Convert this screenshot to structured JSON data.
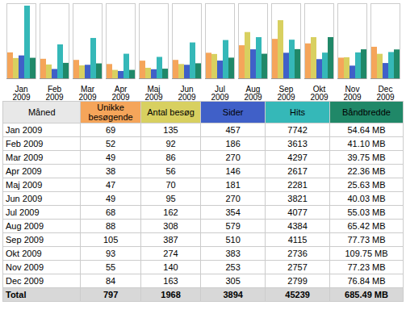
{
  "chart_data": [
    {
      "type": "bar",
      "categories": [
        "Jan\n2009",
        "Feb\n2009",
        "Mar\n2009",
        "Apr\n2009",
        "Maj\n2009",
        "Jun\n2009",
        "Jul\n2009",
        "Aug\n2009",
        "Sep\n2009",
        "Okt\n2009",
        "Nov\n2009",
        "Dec\n2009"
      ],
      "series": [
        {
          "color": "#F5A55A",
          "values": [
            34.5,
            26,
            24.5,
            19,
            23.5,
            24.5,
            34,
            44,
            52.5,
            46.5,
            27.5,
            42
          ]
        },
        {
          "color": "#D8D060",
          "values": [
            27,
            18.4,
            17.2,
            11.2,
            14,
            19,
            32.4,
            61.6,
            77.4,
            54.8,
            28,
            32.6
          ]
        },
        {
          "color": "#4060C8",
          "values": [
            30.466666666666665,
            12.4,
            18,
            9.733333333333333,
            12.066666666666666,
            18,
            23.6,
            38.6,
            34,
            25.533333333333335,
            16.866666666666667,
            20.333333333333332
          ]
        },
        {
          "color": "#35B8B8",
          "values": [
            96.775,
            45.1625,
            53.7125,
            32.7125,
            28.5125,
            47.7625,
            50.9625,
            54.8,
            51.4375,
            34.2,
            34.4625,
            34.9875
          ]
        },
        {
          "color": "#208868",
          "values": [
            27.32,
            20.55,
            19.875,
            11.18,
            12.815,
            20.015,
            27.515,
            32.71,
            38.865,
            54.875,
            38.615,
            38.42
          ]
        }
      ],
      "ylim": [
        0,
        100
      ],
      "yticks": [],
      "tick_labels": "x"
    },
    {
      "type": "table",
      "columns": [
        "Måned",
        "Unikke\nbesøgende",
        "Antal besøg",
        "Sider",
        "Hits",
        "Båndbredde"
      ],
      "colors": [
        "#e8e8e8",
        "#F5A55A",
        "#D8D060",
        "#4060C8",
        "#35B8B8",
        "#208868"
      ],
      "rows": [
        [
          "Jan 2009",
          "69",
          "135",
          "457",
          "7742",
          "54.64 MB"
        ],
        [
          "Feb 2009",
          "52",
          "92",
          "186",
          "3613",
          "41.10 MB"
        ],
        [
          "Mar 2009",
          "49",
          "86",
          "270",
          "4297",
          "39.75 MB"
        ],
        [
          "Apr 2009",
          "38",
          "56",
          "146",
          "2617",
          "22.36 MB"
        ],
        [
          "Maj 2009",
          "47",
          "70",
          "181",
          "2281",
          "25.63 MB"
        ],
        [
          "Jun 2009",
          "49",
          "95",
          "270",
          "3821",
          "40.03 MB"
        ],
        [
          "Jul 2009",
          "68",
          "162",
          "354",
          "4077",
          "55.03 MB"
        ],
        [
          "Aug 2009",
          "88",
          "308",
          "579",
          "4384",
          "65.42 MB"
        ],
        [
          "Sep 2009",
          "105",
          "387",
          "510",
          "4115",
          "77.73 MB"
        ],
        [
          "Okt 2009",
          "93",
          "274",
          "383",
          "2736",
          "109.75 MB"
        ],
        [
          "Nov 2009",
          "55",
          "140",
          "253",
          "2757",
          "77.23 MB"
        ],
        [
          "Dec 2009",
          "84",
          "163",
          "305",
          "2799",
          "76.84 MB"
        ]
      ],
      "total_row": [
        "Total",
        "797",
        "1968",
        "3894",
        "45239",
        "685.49 MB"
      ]
    }
  ]
}
